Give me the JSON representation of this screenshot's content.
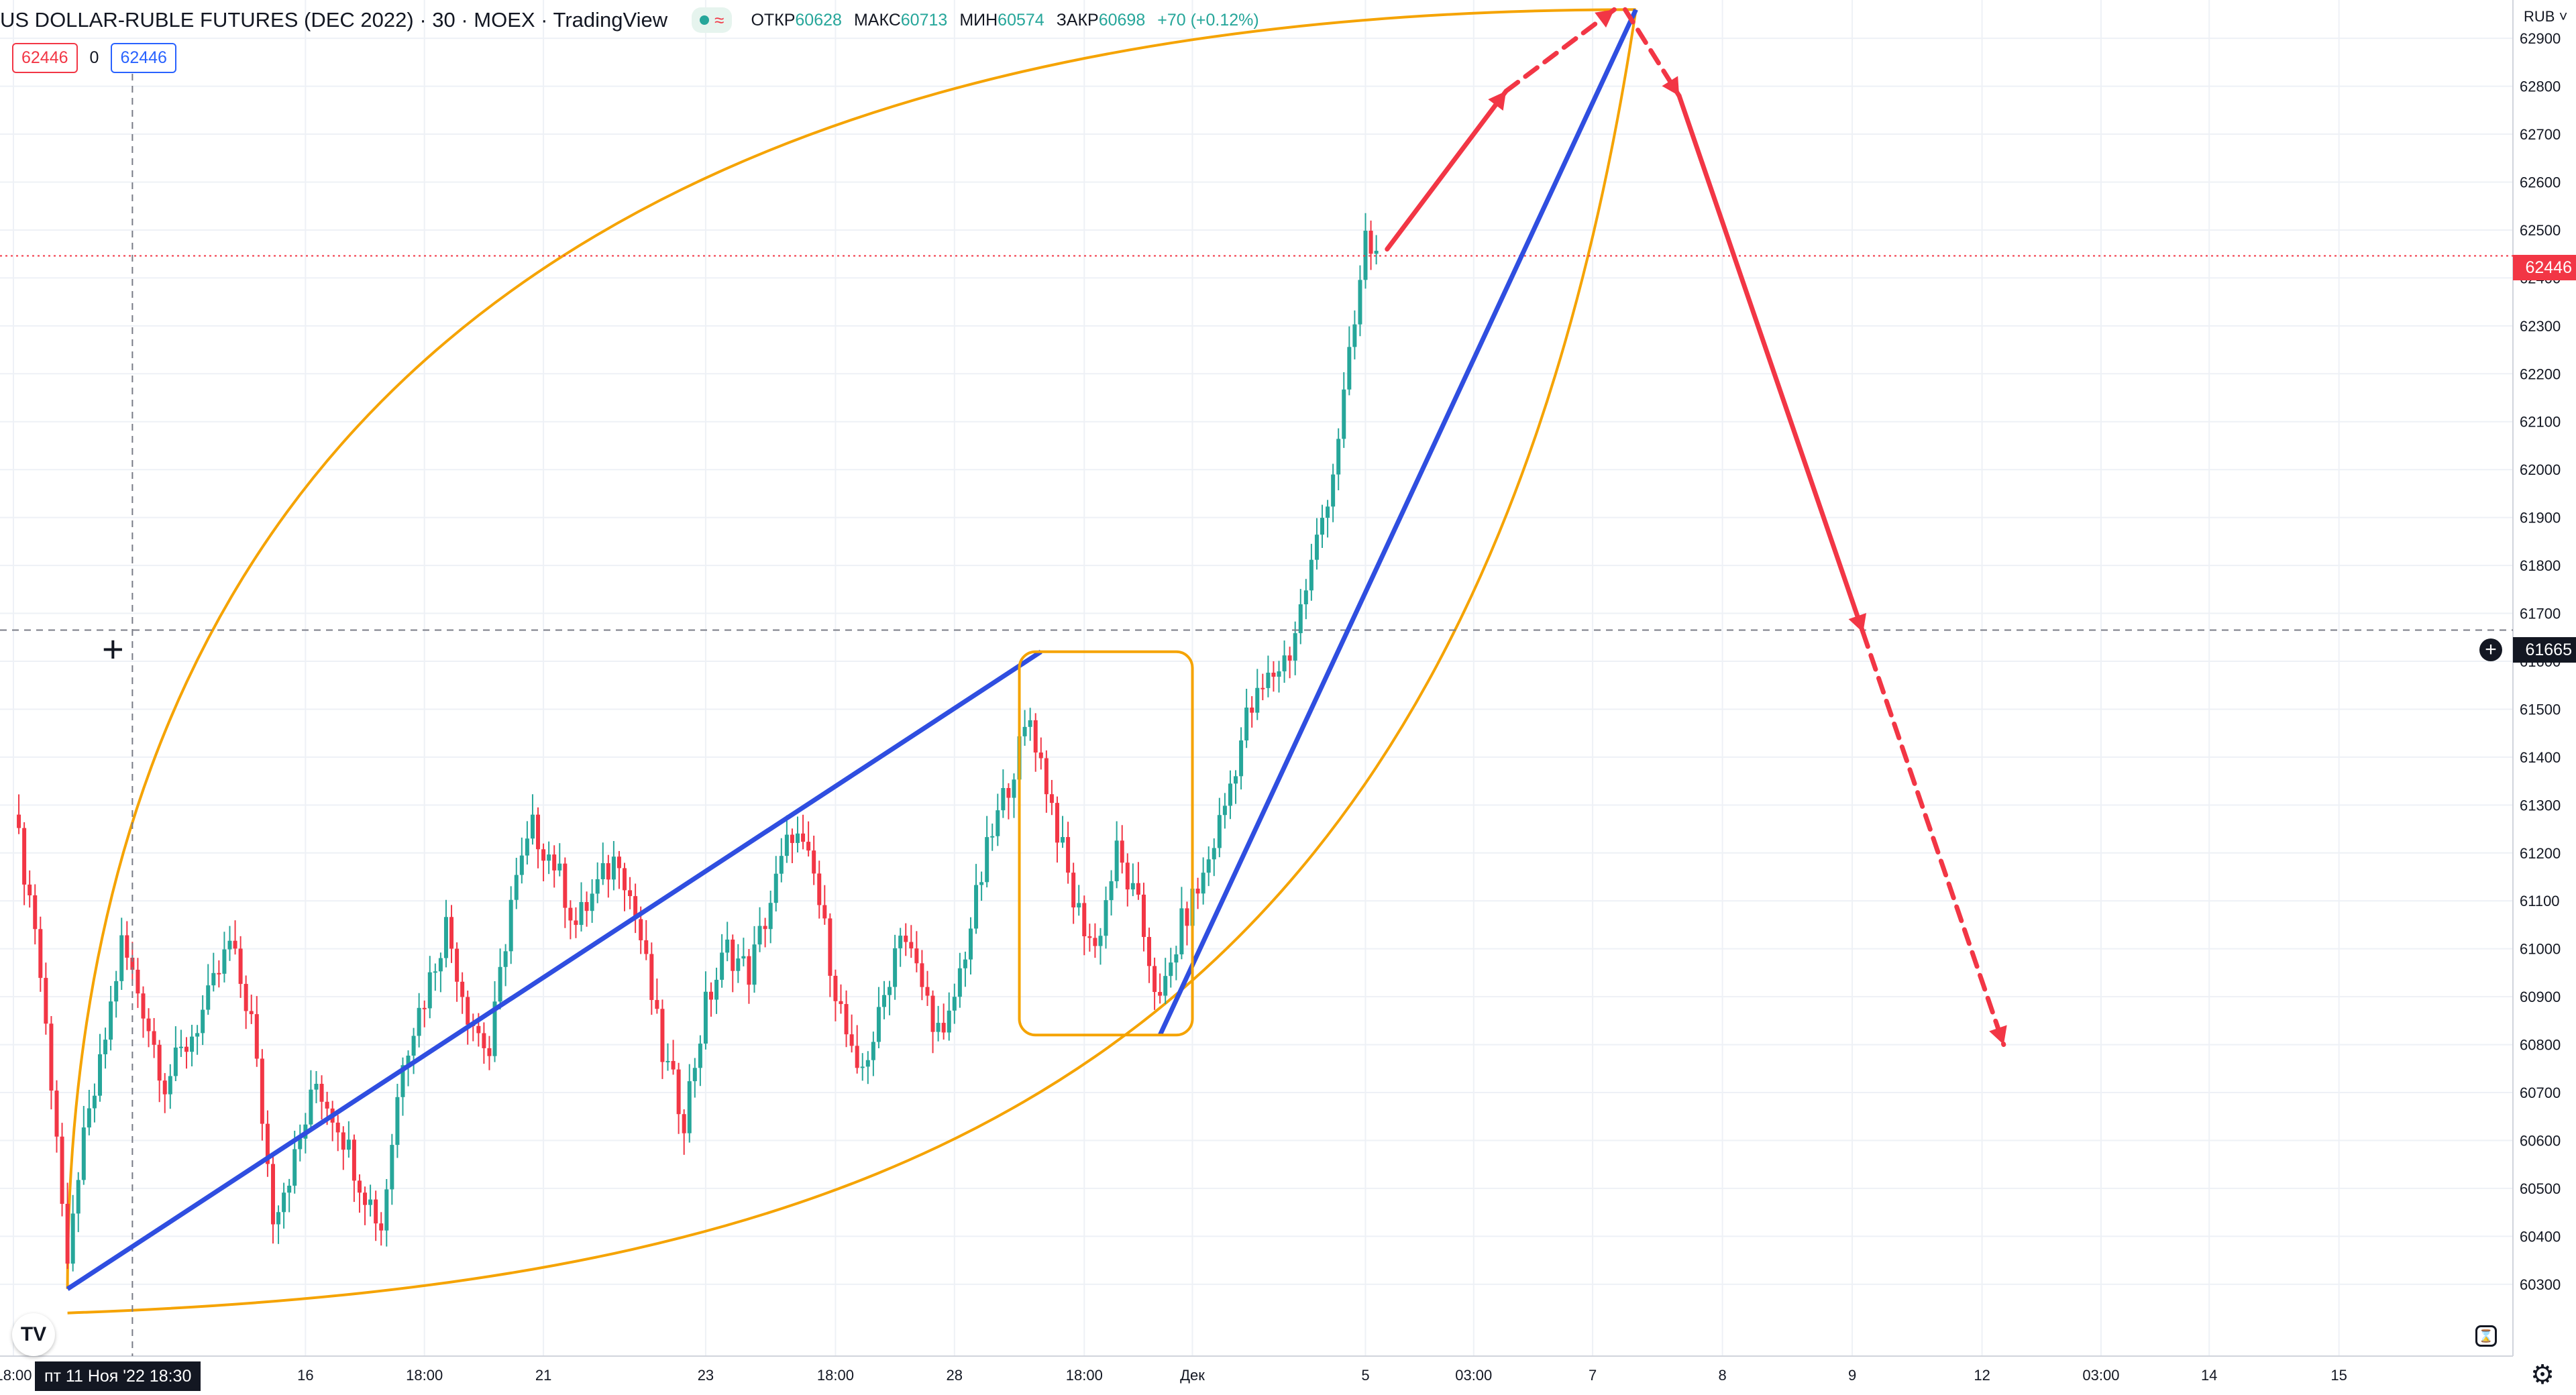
{
  "header": {
    "title": "US DOLLAR-RUBLE FUTURES (DEC 2022) · 30 · MOEX · TradingView",
    "open_label": "ОТКР",
    "open_value": "60628",
    "high_label": "МАКС",
    "high_value": "60713",
    "low_label": "МИН",
    "low_value": "60574",
    "close_label": "ЗАКР",
    "close_value": "60698",
    "change": "+70 (+0.12%)",
    "badge_left": "62446",
    "badge_mid": "0",
    "badge_right": "62446"
  },
  "axis": {
    "currency": "RUB",
    "last_price": "62446",
    "crosshair_price": "61665",
    "crosshair_time": "пт 11 Ноя '22   18:30"
  },
  "colors": {
    "up": "#26a69a",
    "down": "#f23645",
    "trend_blue": "#2f4ee0",
    "curve_orange": "#f5a300",
    "forecast_red": "#f23645",
    "grid": "#eef1f6"
  },
  "chart_data": {
    "type": "candlestick",
    "title": "US DOLLAR-RUBLE FUTURES (DEC 2022) · 30 · MOEX",
    "ylabel": "RUB",
    "ylim": [
      60150,
      62980
    ],
    "y_ticks": [
      60300,
      60400,
      60500,
      60600,
      60700,
      60800,
      60900,
      61000,
      61100,
      61200,
      61300,
      61400,
      61500,
      61600,
      61700,
      61800,
      61900,
      62000,
      62100,
      62200,
      62300,
      62400,
      62500,
      62600,
      62700,
      62800,
      62900
    ],
    "x_ticks": [
      {
        "label": "18:00",
        "index": 0
      },
      {
        "label": "16",
        "index": 27
      },
      {
        "label": "18:00",
        "index": 38
      },
      {
        "label": "21",
        "index": 49
      },
      {
        "label": "23",
        "index": 64
      },
      {
        "label": "18:00",
        "index": 76
      },
      {
        "label": "28",
        "index": 87
      },
      {
        "label": "18:00",
        "index": 99
      },
      {
        "label": "Дек",
        "index": 109
      },
      {
        "label": "5",
        "index": 125
      },
      {
        "label": "03:00",
        "index": 135
      },
      {
        "label": "7",
        "index": 146
      },
      {
        "label": "8",
        "index": 158
      },
      {
        "label": "9",
        "index": 170
      },
      {
        "label": "12",
        "index": 182
      },
      {
        "label": "03:00",
        "index": 193
      },
      {
        "label": "14",
        "index": 203
      },
      {
        "label": "15",
        "index": 215
      }
    ],
    "x_count": 230,
    "price_path": [
      [
        0,
        61280
      ],
      [
        2,
        61050
      ],
      [
        4,
        60620
      ],
      [
        5,
        60310
      ],
      [
        6,
        60540
      ],
      [
        8,
        60750
      ],
      [
        10,
        61010
      ],
      [
        12,
        60880
      ],
      [
        14,
        60720
      ],
      [
        16,
        60800
      ],
      [
        18,
        60890
      ],
      [
        20,
        61010
      ],
      [
        22,
        60850
      ],
      [
        24,
        60450
      ],
      [
        26,
        60560
      ],
      [
        28,
        60720
      ],
      [
        30,
        60640
      ],
      [
        32,
        60520
      ],
      [
        34,
        60420
      ],
      [
        36,
        60780
      ],
      [
        38,
        60900
      ],
      [
        40,
        61050
      ],
      [
        42,
        60870
      ],
      [
        44,
        60780
      ],
      [
        46,
        61100
      ],
      [
        48,
        61250
      ],
      [
        50,
        61180
      ],
      [
        52,
        61050
      ],
      [
        54,
        61130
      ],
      [
        56,
        61200
      ],
      [
        58,
        61020
      ],
      [
        60,
        60780
      ],
      [
        62,
        60650
      ],
      [
        64,
        60880
      ],
      [
        66,
        61000
      ],
      [
        68,
        60950
      ],
      [
        70,
        61100
      ],
      [
        72,
        61250
      ],
      [
        74,
        61150
      ],
      [
        76,
        60920
      ],
      [
        78,
        60720
      ],
      [
        80,
        60850
      ],
      [
        82,
        61050
      ],
      [
        84,
        60920
      ],
      [
        86,
        60800
      ],
      [
        88,
        61000
      ],
      [
        90,
        61200
      ],
      [
        92,
        61350
      ],
      [
        94,
        61480
      ],
      [
        96,
        61300
      ],
      [
        98,
        61100
      ],
      [
        100,
        61000
      ],
      [
        102,
        61200
      ],
      [
        104,
        61080
      ],
      [
        106,
        60880
      ],
      [
        108,
        61050
      ],
      [
        110,
        61150
      ],
      [
        112,
        61300
      ],
      [
        114,
        61480
      ],
      [
        116,
        61560
      ],
      [
        118,
        61620
      ],
      [
        120,
        61800
      ],
      [
        122,
        62000
      ],
      [
        124,
        62300
      ],
      [
        125,
        62480
      ],
      [
        126,
        62446
      ]
    ],
    "annotations": [
      {
        "type": "line",
        "color": "blue",
        "from": [
          5,
          60290
        ],
        "to": [
          95,
          61620
        ]
      },
      {
        "type": "line",
        "color": "blue",
        "from": [
          106,
          60820
        ],
        "to": [
          150,
          62960
        ]
      },
      {
        "type": "rect",
        "color": "orange",
        "from": [
          93,
          60820
        ],
        "to": [
          109,
          61620
        ]
      },
      {
        "type": "arrow",
        "color": "red",
        "style": "solid",
        "from": [
          127,
          62460
        ],
        "to": [
          138,
          62790
        ]
      },
      {
        "type": "arrow",
        "color": "red",
        "style": "dashed",
        "from": [
          138,
          62790
        ],
        "to": [
          148,
          62960
        ]
      },
      {
        "type": "arrow",
        "color": "red",
        "style": "dashed",
        "from": [
          149,
          62960
        ],
        "to": [
          154,
          62780
        ]
      },
      {
        "type": "arrow",
        "color": "red",
        "style": "solid",
        "from": [
          154,
          62780
        ],
        "to": [
          171,
          61660
        ]
      },
      {
        "type": "arrow",
        "color": "red",
        "style": "dashed",
        "from": [
          171,
          61660
        ],
        "to": [
          184,
          60800
        ]
      }
    ]
  }
}
